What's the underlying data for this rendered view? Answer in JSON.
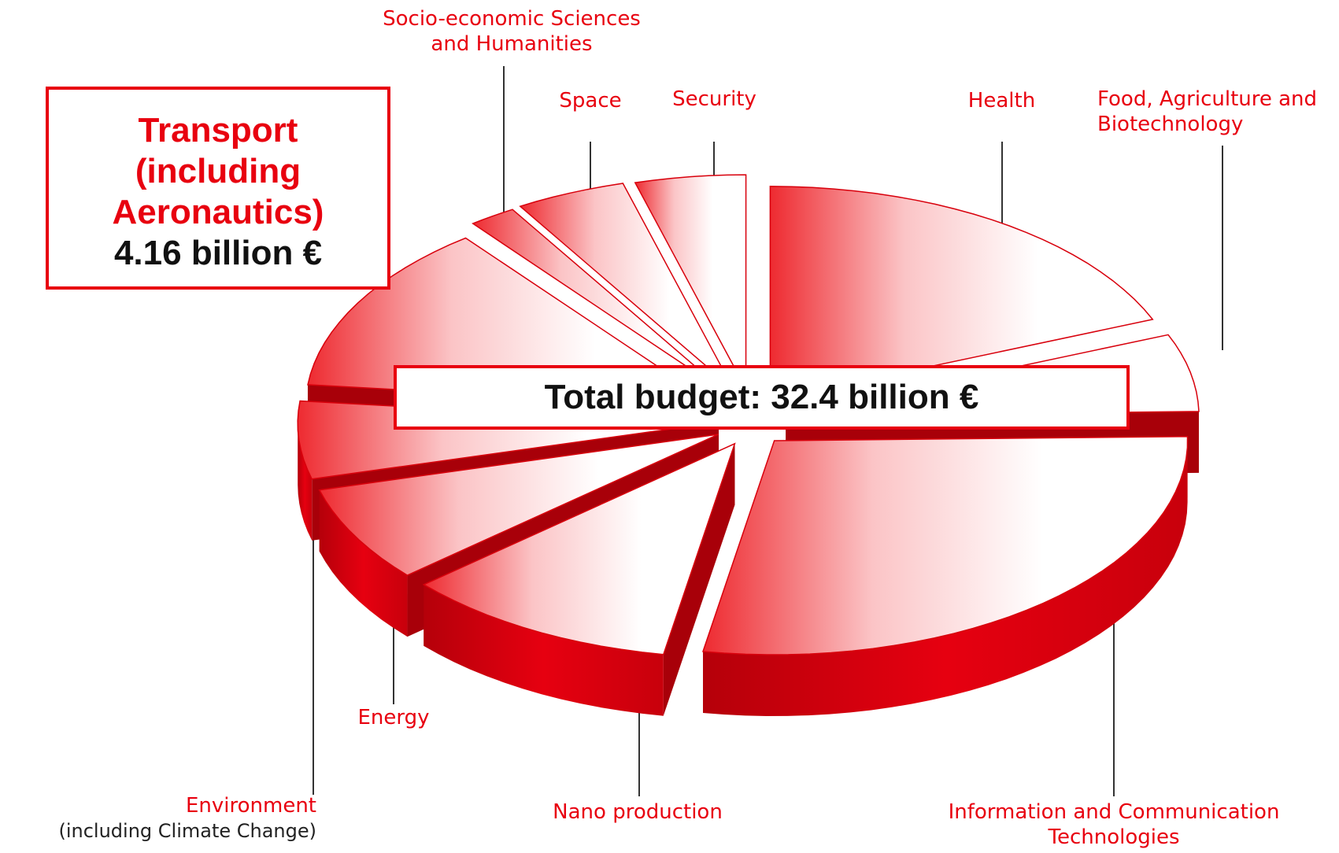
{
  "chart_data": {
    "type": "pie",
    "style": "3d-exploded",
    "accent_color": "#e8000f",
    "slices": [
      {
        "label": "Health",
        "value": 6.1
      },
      {
        "label": "Food, Agriculture and Biotechnology",
        "value": 1.9
      },
      {
        "label": "Information and Communication Technologies",
        "value": 9.1
      },
      {
        "label": "Nano production",
        "value": 3.5
      },
      {
        "label": "Energy",
        "value": 2.35
      },
      {
        "label": "Environment",
        "sublabel": "(including Climate Change)",
        "value": 1.9
      },
      {
        "label": "Transport (including Aeronautics)",
        "value": 4.16
      },
      {
        "label": "Socio-economic Sciences and Humanities",
        "value": 0.6
      },
      {
        "label": "Space",
        "value": 1.4
      },
      {
        "label": "Security",
        "value": 1.4
      }
    ],
    "labels": {
      "socio": [
        "Socio-economic Sciences",
        "and Humanities"
      ],
      "space": "Space",
      "security": "Security",
      "health": "Health",
      "food": [
        "Food, Agriculture and",
        "Biotechnology"
      ],
      "energy": "Energy",
      "environment": "Environment",
      "environment_sub": "(including Climate Change)",
      "nano": "Nano production",
      "ict": [
        "Information and Communication",
        "Technologies"
      ]
    },
    "callout": {
      "lines": [
        "Transport",
        "(including",
        "Aeronautics)"
      ],
      "value": "4.16 billion €"
    },
    "total": "Total budget: 32.4 billion €"
  }
}
